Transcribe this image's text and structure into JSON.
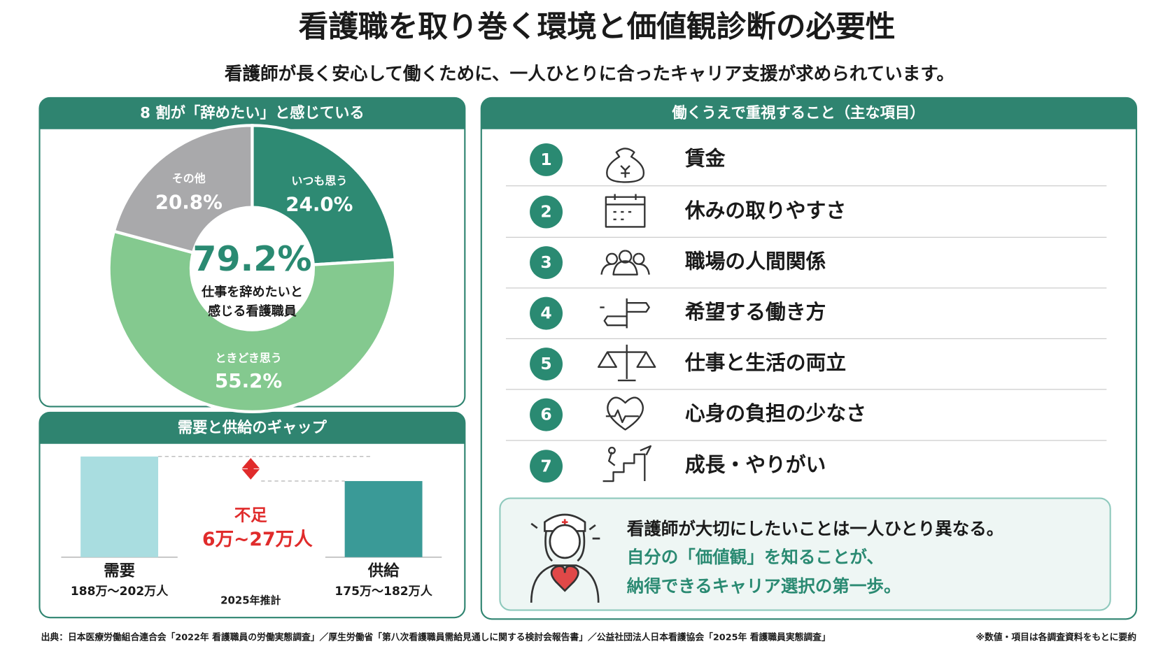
{
  "header": {
    "title": "看護職を取り巻く環境と価値観診断の必要性",
    "subtitle": "看護師が長く安心して働くために、一人ひとりに合ったキャリア支援が求められています。"
  },
  "chart_data": [
    {
      "type": "donut",
      "title": "8 割が「辞めたい」と感じている",
      "categories": [
        "いつも思う",
        "ときどき思う",
        "その他"
      ],
      "values": [
        24.0,
        55.2,
        20.8
      ],
      "value_labels": [
        "24.0%",
        "55.2%",
        "20.8%"
      ],
      "colors": [
        "#2e8a73",
        "#84c98f",
        "#a9a9ab"
      ],
      "center_value": "79.2%",
      "center_text": [
        "仕事を辞めたいと",
        "感じる看護職員"
      ]
    },
    {
      "type": "bar",
      "title": "需要と供給のギャップ",
      "categories": [
        "需要",
        "供給"
      ],
      "values": [
        202,
        182
      ],
      "range_labels": [
        "188万～202万人",
        "175万～182万人"
      ],
      "colors": [
        "#a9dde0",
        "#3a9a97"
      ],
      "ylim": [
        120,
        202
      ],
      "gap_label": "不足",
      "gap_value": "6万~27万人",
      "note": "2025年推計"
    }
  ],
  "priorities": {
    "title": "働くうえで重視すること（主な項目）",
    "items": [
      {
        "number": "1",
        "label": "賃金"
      },
      {
        "number": "2",
        "label": "休みの取りやすさ"
      },
      {
        "number": "3",
        "label": "職場の人間関係"
      },
      {
        "number": "4",
        "label": "希望する働き方"
      },
      {
        "number": "5",
        "label": "仕事と生活の両立"
      },
      {
        "number": "6",
        "label": "心身の負担の少なさ"
      },
      {
        "number": "7",
        "label": "成長・やりがい"
      }
    ],
    "message": [
      "看護師が大切にしたいことは一人ひとり異なる。",
      "自分の「価値観」を知ることが、",
      "納得できるキャリア選択の第一歩。"
    ]
  },
  "footer": {
    "source": "出典：日本医療労働組合連合会「2022年 看護職員の労働実態調査」／厚生労働省「第八次看護職員需給見通しに関する検討会報告書」／公益社団法人日本看護協会「2025年 看護職員実態調査」",
    "note": "※数値・項目は各調査資料をもとに要約"
  }
}
